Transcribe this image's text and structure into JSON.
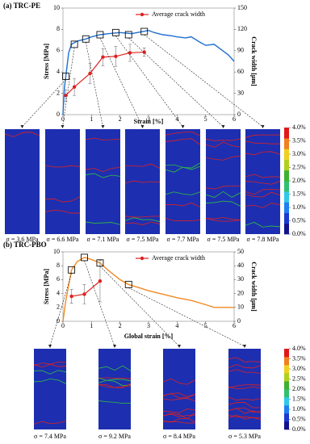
{
  "chart_data": [
    {
      "type": "line",
      "title": "(a) TRC-PE",
      "x_label": "Strain [%]",
      "y_label": "Stress [MPa]",
      "y2_label": "Crack width [μm]",
      "xlim": [
        0,
        6
      ],
      "xticks": [
        0,
        1,
        2,
        3,
        4,
        5,
        6
      ],
      "ylim": [
        0,
        10
      ],
      "yticks": [
        0,
        2,
        4,
        6,
        8,
        10
      ],
      "y2lim": [
        0,
        150
      ],
      "y2ticks": [
        0,
        30,
        60,
        90,
        120,
        150
      ],
      "stress_curve": {
        "color": "#1f6fd1",
        "x": [
          0,
          0.05,
          0.1,
          0.2,
          0.3,
          0.5,
          0.8,
          1.0,
          1.3,
          1.6,
          2.0,
          2.4,
          2.8,
          3.0,
          3.2,
          3.5,
          3.8,
          4.0,
          4.3,
          4.5,
          4.8,
          5.0,
          5.3,
          5.6,
          5.8,
          6.0
        ],
        "values": [
          0,
          2.5,
          3.6,
          5.8,
          6.6,
          6.9,
          7.1,
          7.3,
          7.5,
          7.6,
          7.7,
          7.6,
          7.8,
          7.9,
          7.7,
          7.5,
          7.4,
          7.3,
          7.2,
          7.3,
          6.8,
          6.5,
          6.6,
          6.0,
          5.6,
          5.0
        ]
      },
      "series": [
        {
          "name": "Average crack width",
          "color": "#e02020",
          "axis": "y2",
          "x": [
            0.1,
            0.4,
            0.95,
            1.4,
            1.85,
            2.35,
            2.85
          ],
          "values": [
            27,
            39,
            58,
            81,
            82,
            87,
            88
          ],
          "errors": [
            8,
            12,
            14,
            12,
            14,
            12,
            6
          ]
        }
      ],
      "snapshots": {
        "x": [
          0.1,
          0.4,
          0.8,
          1.3,
          1.85,
          2.3,
          2.85
        ],
        "values": [
          3.6,
          6.6,
          7.1,
          7.5,
          7.7,
          7.5,
          7.8
        ],
        "value_labels": [
          "σ = 3.6 MPa",
          "σ = 6.6 MPa",
          "σ = 7.1 MPa",
          "σ = 7.5 MPa",
          "σ = 7.7 MPa",
          "σ = 7.5 MPa",
          "σ = 7.8 MPa"
        ]
      },
      "colorbar_ticks": [
        {
          "value": 4.0,
          "label": "4.0%"
        },
        {
          "value": 3.5,
          "label": "3.5%"
        },
        {
          "value": 3.0,
          "label": "3.0%"
        },
        {
          "value": 2.5,
          "label": "2.5%"
        },
        {
          "value": 2.0,
          "label": "2.0%"
        },
        {
          "value": 1.5,
          "label": "1.5%"
        },
        {
          "value": 1.0,
          "label": "1.0%"
        },
        {
          "value": 0.5,
          "label": "0.5%"
        },
        {
          "value": 0.0,
          "label": "0.0%"
        }
      ]
    },
    {
      "type": "line",
      "title": "(b) TRC-PBO",
      "x_label": "Global strain [%]",
      "y_label": "Stress [MPa]",
      "y2_label": "Crack width [μm]",
      "xlim": [
        0,
        6
      ],
      "xticks": [
        0,
        1,
        2,
        3,
        4,
        5,
        6
      ],
      "ylim": [
        0,
        10
      ],
      "yticks": [
        0,
        2,
        4,
        6,
        8,
        10
      ],
      "y2lim": [
        0,
        50
      ],
      "y2ticks": [
        0,
        10,
        20,
        30,
        40,
        50
      ],
      "stress_curve": {
        "color": "#f08a24",
        "x": [
          0,
          0.1,
          0.3,
          0.5,
          0.75,
          1.0,
          1.3,
          1.6,
          2.0,
          2.3,
          2.7,
          3.0,
          3.5,
          4.0,
          4.5,
          5.0,
          5.3,
          5.6,
          6.0
        ],
        "values": [
          0,
          3.0,
          7.4,
          8.6,
          9.2,
          8.9,
          8.4,
          7.3,
          6.0,
          5.3,
          4.8,
          4.4,
          3.9,
          3.4,
          3.0,
          2.4,
          2.0,
          2.0,
          2.0
        ]
      },
      "series": [
        {
          "name": "Average crack width",
          "color": "#e02020",
          "axis": "y2",
          "x": [
            0.3,
            0.75,
            1.3
          ],
          "values": [
            18,
            19.5,
            29
          ],
          "errors": [
            5,
            7,
            15
          ]
        }
      ],
      "snapshots": {
        "x": [
          0.3,
          0.75,
          1.3,
          2.3
        ],
        "values": [
          7.4,
          9.2,
          8.4,
          5.3
        ],
        "value_labels": [
          "σ = 7.4 MPa",
          "σ = 9.2 MPa",
          "σ = 8.4 MPa",
          "σ = 5.3 MPa"
        ]
      },
      "colorbar_ticks": [
        {
          "value": 4.0,
          "label": "4.0%"
        },
        {
          "value": 3.5,
          "label": "3.5%"
        },
        {
          "value": 3.0,
          "label": "3.0%"
        },
        {
          "value": 2.5,
          "label": "2.5%"
        },
        {
          "value": 2.0,
          "label": "2.0%"
        },
        {
          "value": 1.5,
          "label": "1.5%"
        },
        {
          "value": 1.0,
          "label": "1.0%"
        },
        {
          "value": 0.5,
          "label": "0.5%"
        },
        {
          "value": 0.0,
          "label": "0.0%"
        }
      ]
    }
  ]
}
